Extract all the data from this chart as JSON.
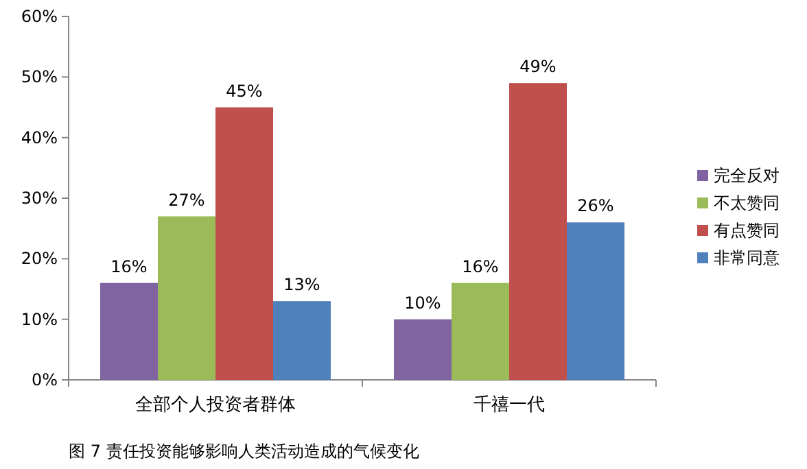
{
  "chart_data": {
    "type": "bar",
    "categories": [
      "全部个人投资者群体",
      "千禧一代"
    ],
    "series": [
      {
        "name": "完全反对",
        "color": "#8064a2",
        "values": [
          16,
          10
        ],
        "value_labels": [
          "16%",
          "10%"
        ]
      },
      {
        "name": "不太赞同",
        "color": "#9bbb59",
        "values": [
          27,
          16
        ],
        "value_labels": [
          "27%",
          "16%"
        ]
      },
      {
        "name": "有点赞同",
        "color": "#c0504d",
        "values": [
          45,
          49
        ],
        "value_labels": [
          "45%",
          "49%"
        ]
      },
      {
        "name": "非常同意",
        "color": "#4f81bd",
        "values": [
          13,
          26
        ],
        "value_labels": [
          "13%",
          "26%"
        ]
      }
    ],
    "ylim": [
      0,
      60
    ],
    "yticks": [
      {
        "value": 0,
        "label": "0%"
      },
      {
        "value": 10,
        "label": "10%"
      },
      {
        "value": 20,
        "label": "20%"
      },
      {
        "value": 30,
        "label": "30%"
      },
      {
        "value": 40,
        "label": "40%"
      },
      {
        "value": 50,
        "label": "50%"
      },
      {
        "value": 60,
        "label": "60%"
      }
    ],
    "legend": "right",
    "annotations": [
      "图 7 责任投资能够影响人类活动造成的气候变化"
    ]
  }
}
